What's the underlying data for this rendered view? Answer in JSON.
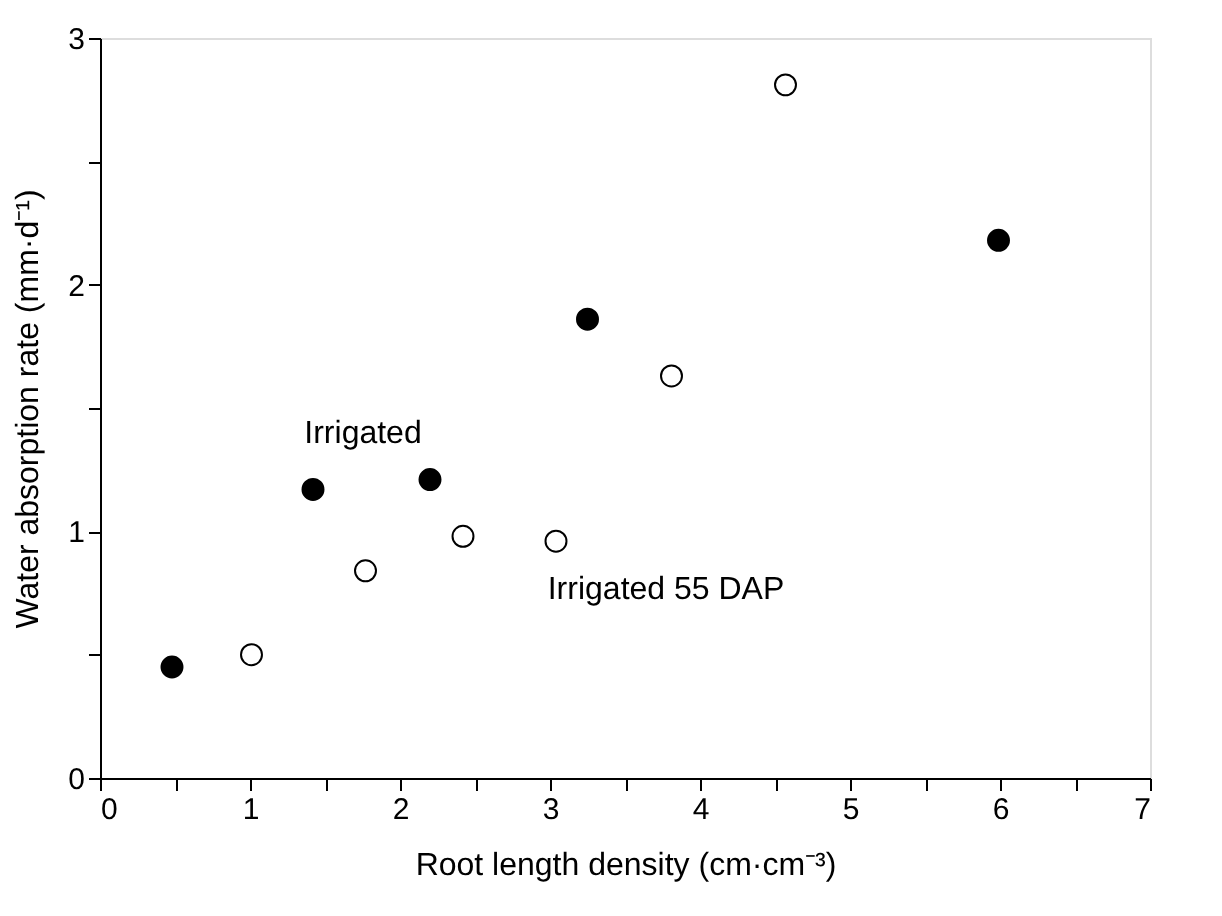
{
  "chart_data": {
    "type": "scatter",
    "xlabel": "Root length density (cm·cm⁻³)",
    "ylabel": "Water absorption rate (mm·d⁻¹)",
    "series": [
      {
        "name": "Irrigated",
        "color": "#000000",
        "x": [
          0.48,
          1.42,
          2.2,
          3.25,
          5.99
        ],
        "values": [
          0.45,
          1.17,
          1.21,
          1.86,
          2.18
        ]
      },
      {
        "name": "Irrigated 55 DAP",
        "color": "#ffffff",
        "x": [
          1.01,
          1.77,
          2.42,
          3.04,
          3.81,
          4.57
        ],
        "values": [
          0.5,
          0.84,
          0.98,
          0.96,
          1.63,
          2.81
        ]
      }
    ],
    "xlim": [
      0,
      7
    ],
    "ylim": [
      0,
      3
    ],
    "xticks": [
      0,
      {
        "value": 0.5,
        "label": null
      },
      1,
      {
        "value": 1.5,
        "label": null
      },
      2,
      {
        "value": 2.5,
        "label": null
      },
      3,
      {
        "value": 3.5,
        "label": null
      },
      4,
      {
        "value": 4.5,
        "label": null
      },
      5,
      {
        "value": 5.5,
        "label": null
      },
      6,
      {
        "value": 6.5,
        "label": null
      },
      7
    ],
    "yticks": [
      0,
      {
        "value": 0.5,
        "label": null
      },
      1,
      {
        "value": 1.5,
        "label": null
      },
      2,
      {
        "value": 2.5,
        "label": null
      },
      3
    ],
    "marker": "circle",
    "grid": false
  }
}
